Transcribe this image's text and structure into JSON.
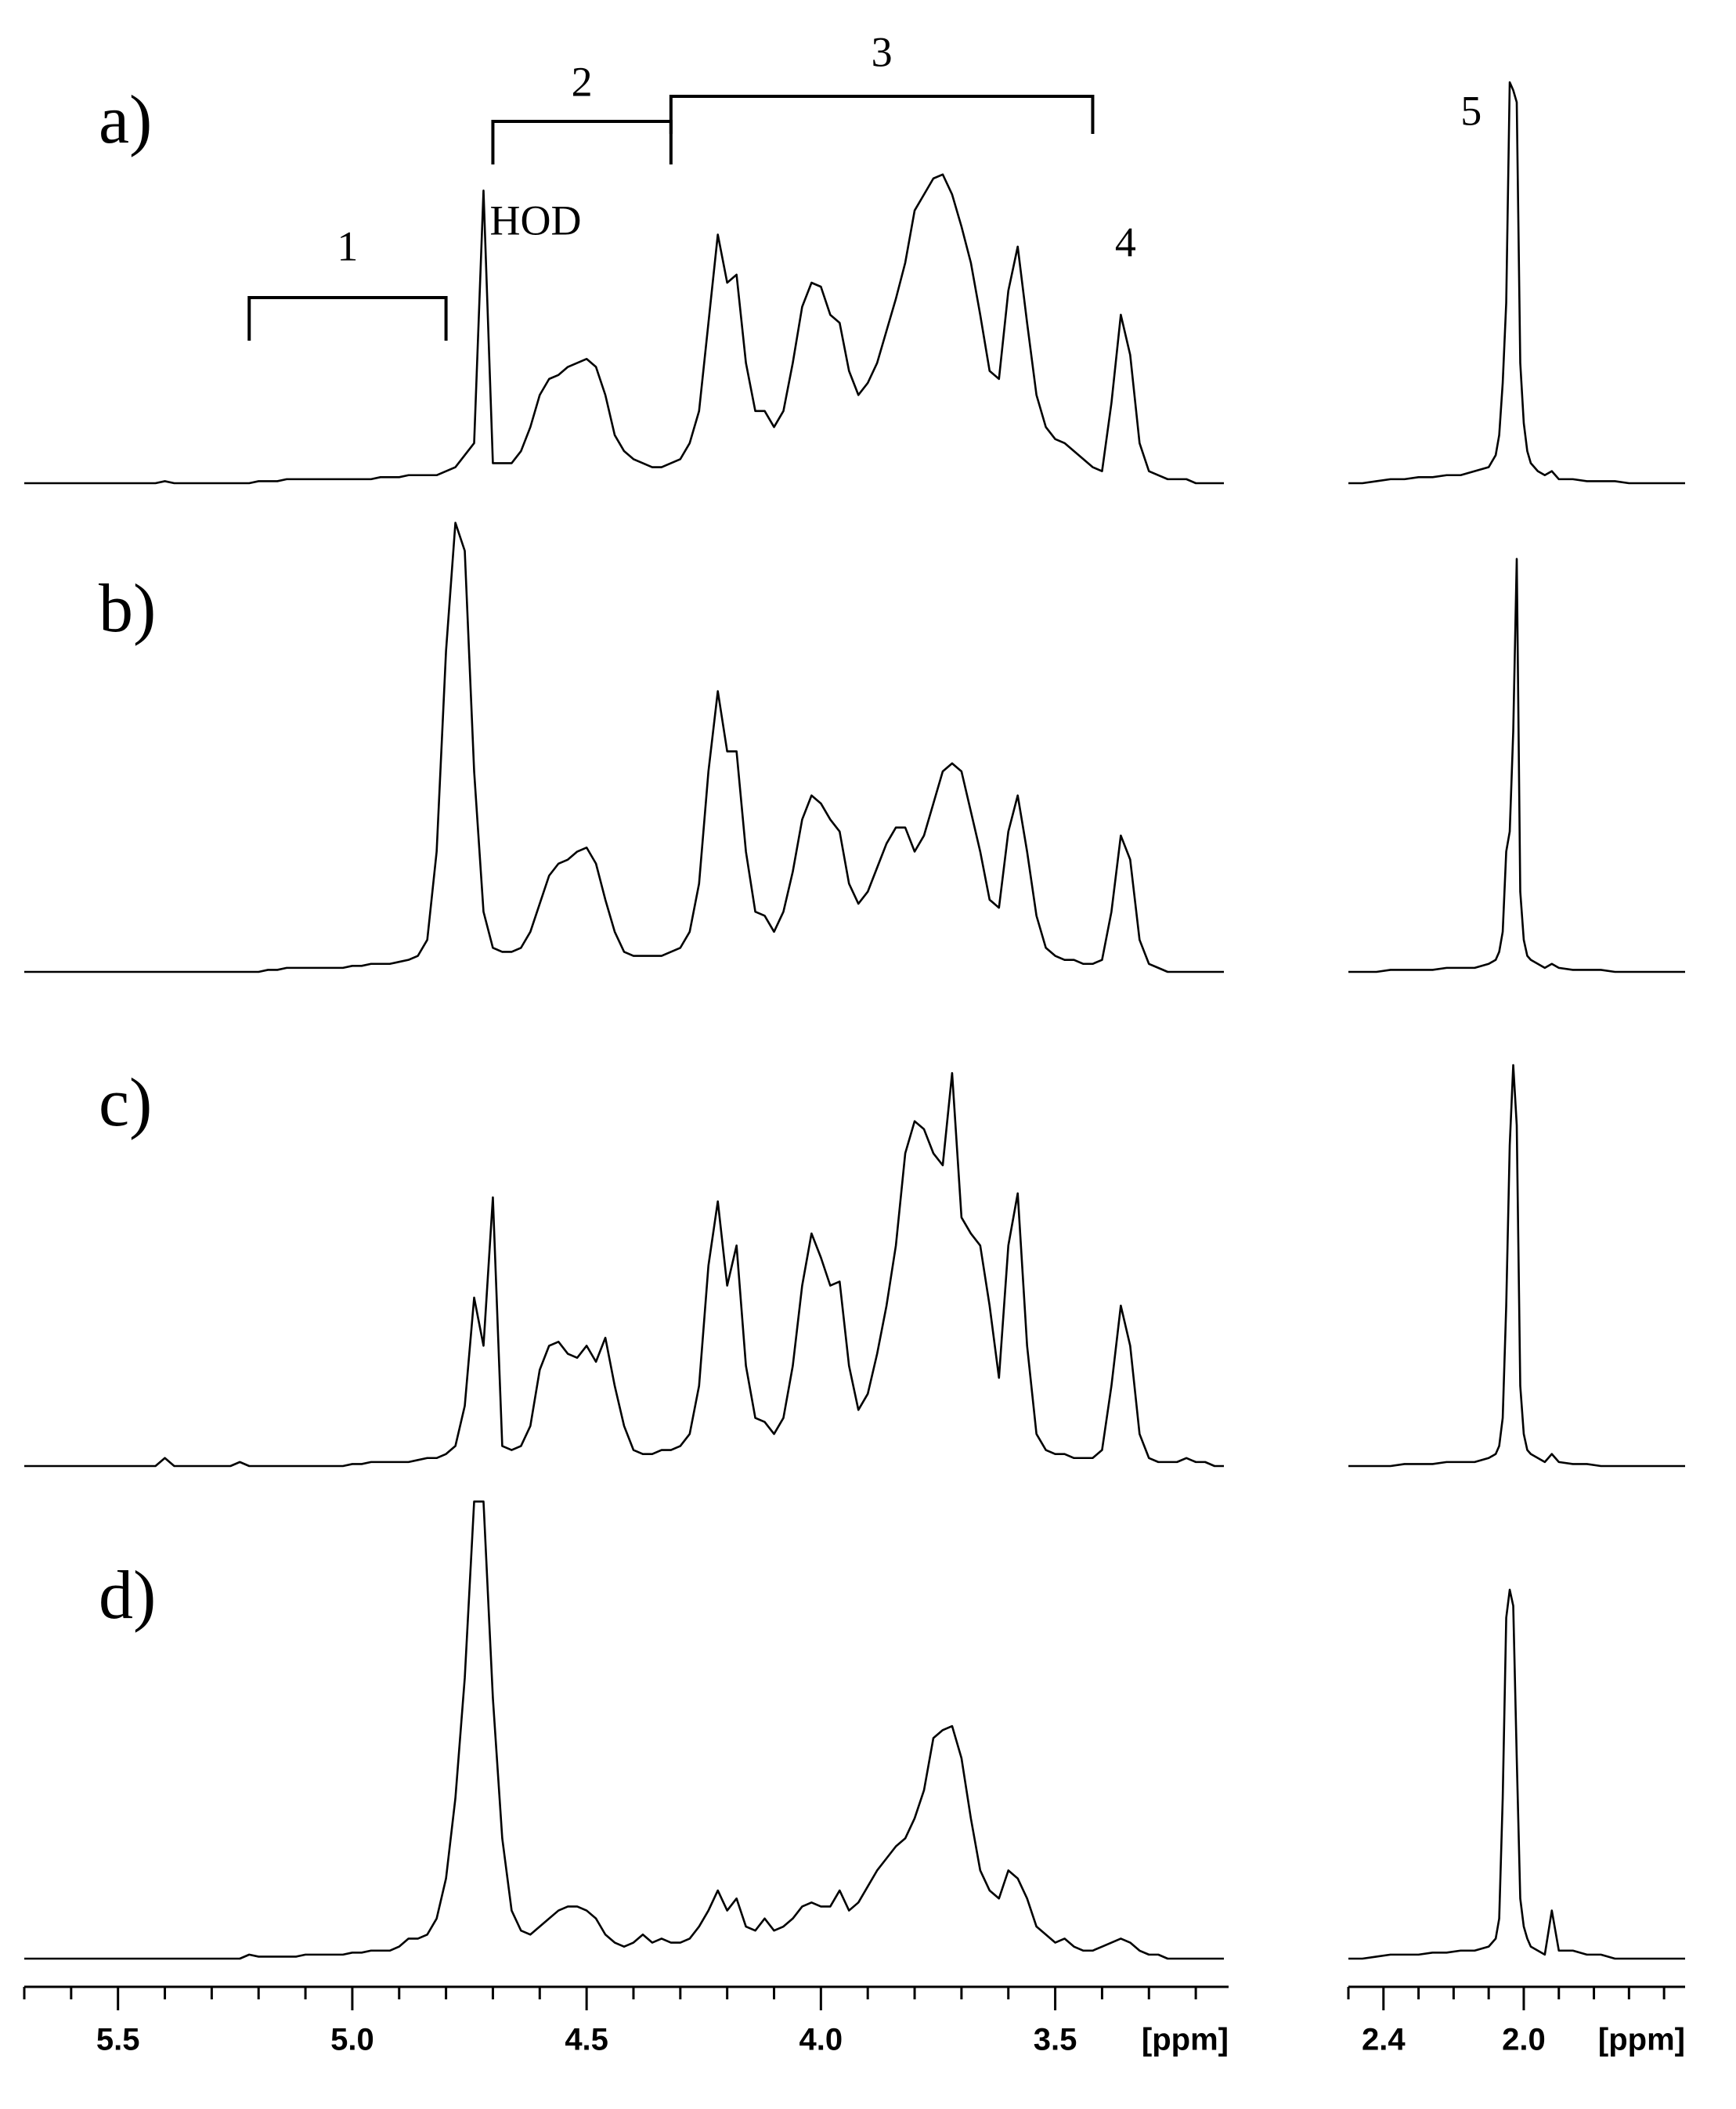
{
  "chart_data": [
    {
      "type": "line",
      "xlim": [
        5.7,
        3.13
      ],
      "ylim": [
        0,
        100
      ],
      "xticks": [
        5.5,
        {
          "value": 5,
          "label": "5.0"
        },
        4.5,
        {
          "value": 4,
          "label": "4.0"
        },
        3.5
      ],
      "xminorticks": [
        5.7,
        5.6,
        5.4,
        5.3,
        5.2,
        5.1,
        4.9,
        4.8,
        4.7,
        4.6,
        4.4,
        4.3,
        4.2,
        4.1,
        3.9,
        3.8,
        3.7,
        3.6,
        3.4,
        3.3,
        3.2
      ],
      "xlabel": "[ppm]",
      "x": [
        5.7,
        5.68,
        5.66,
        5.64,
        5.62,
        5.6,
        5.58,
        5.56,
        5.54,
        5.52,
        5.5,
        5.48,
        5.46,
        5.44,
        5.42,
        5.4,
        5.38,
        5.36,
        5.34,
        5.32,
        5.3,
        5.28,
        5.26,
        5.24,
        5.22,
        5.2,
        5.18,
        5.16,
        5.14,
        5.12,
        5.1,
        5.08,
        5.06,
        5.04,
        5.02,
        5,
        4.98,
        4.96,
        4.94,
        4.92,
        4.9,
        4.88,
        4.86,
        4.84,
        4.82,
        4.8,
        4.78,
        4.76,
        4.74,
        4.72,
        4.7,
        4.68,
        4.66,
        4.64,
        4.62,
        4.6,
        4.58,
        4.56,
        4.54,
        4.52,
        4.5,
        4.48,
        4.46,
        4.44,
        4.42,
        4.4,
        4.38,
        4.36,
        4.34,
        4.32,
        4.3,
        4.28,
        4.26,
        4.24,
        4.22,
        4.2,
        4.18,
        4.16,
        4.14,
        4.12,
        4.1,
        4.08,
        4.06,
        4.04,
        4.02,
        4,
        3.98,
        3.96,
        3.94,
        3.92,
        3.9,
        3.88,
        3.86,
        3.84,
        3.82,
        3.8,
        3.78,
        3.76,
        3.74,
        3.72,
        3.7,
        3.68,
        3.66,
        3.64,
        3.62,
        3.6,
        3.58,
        3.56,
        3.54,
        3.52,
        3.5,
        3.48,
        3.46,
        3.44,
        3.42,
        3.4,
        3.38,
        3.36,
        3.34,
        3.32,
        3.3,
        3.28,
        3.26,
        3.24,
        3.22,
        3.2,
        3.18,
        3.16,
        3.14
      ],
      "series": [
        {
          "name": "a)",
          "color": "#000000",
          "values": [
            0,
            0,
            0,
            0,
            0,
            0,
            0,
            0,
            0,
            0,
            0,
            0,
            0,
            0,
            0,
            0.5,
            0,
            0,
            0,
            0,
            0,
            0,
            0,
            0,
            0,
            0.5,
            0.5,
            0.5,
            1,
            1,
            1,
            1,
            1,
            1,
            1,
            1,
            1,
            1,
            1.5,
            1.5,
            1.5,
            2,
            2,
            2,
            2,
            3,
            4,
            7,
            10,
            73,
            5,
            5,
            5,
            8,
            14,
            22,
            26,
            27,
            29,
            30,
            31,
            29,
            22,
            12,
            8,
            6,
            5,
            4,
            4,
            5,
            6,
            10,
            18,
            40,
            62,
            50,
            52,
            30,
            18,
            18,
            14,
            18,
            30,
            44,
            50,
            49,
            42,
            40,
            28,
            22,
            25,
            30,
            38,
            46,
            55,
            68,
            72,
            76,
            77,
            72,
            64,
            55,
            42,
            28,
            26,
            48,
            59,
            40,
            22,
            14,
            11,
            10,
            8,
            6,
            4,
            3,
            20,
            42,
            32,
            10,
            3,
            2,
            1,
            1,
            1,
            0,
            0,
            0,
            0
          ]
        },
        {
          "name": "b)",
          "color": "#000000",
          "values": [
            0,
            0,
            0,
            0,
            0,
            0,
            0,
            0,
            0,
            0,
            0,
            0,
            0,
            0,
            0,
            0,
            0,
            0,
            0,
            0,
            0,
            0,
            0,
            0,
            0,
            0,
            0.5,
            0.5,
            1,
            1,
            1,
            1,
            1,
            1,
            1,
            1.5,
            1.5,
            2,
            2,
            2,
            2.5,
            3,
            4,
            8,
            30,
            80,
            112,
            105,
            50,
            15,
            6,
            5,
            5,
            6,
            10,
            17,
            24,
            27,
            28,
            30,
            31,
            27,
            18,
            10,
            5,
            4,
            4,
            4,
            4,
            5,
            6,
            10,
            22,
            50,
            70,
            55,
            55,
            30,
            15,
            14,
            10,
            15,
            25,
            38,
            44,
            42,
            38,
            35,
            22,
            17,
            20,
            26,
            32,
            36,
            36,
            30,
            34,
            42,
            50,
            52,
            50,
            40,
            30,
            18,
            16,
            35,
            44,
            30,
            14,
            6,
            4,
            3,
            3,
            2,
            2,
            3,
            15,
            34,
            28,
            8,
            2,
            1,
            0,
            0,
            0,
            0,
            0,
            0,
            0
          ]
        },
        {
          "name": "c)",
          "color": "#000000",
          "values": [
            0,
            0,
            0,
            0,
            0,
            0,
            0,
            0,
            0,
            0,
            0,
            0,
            0,
            0,
            0,
            2,
            0,
            0,
            0,
            0,
            0,
            0,
            0,
            1,
            0,
            0,
            0,
            0,
            0,
            0,
            0,
            0,
            0,
            0,
            0,
            0.5,
            0.5,
            1,
            1,
            1,
            1,
            1,
            1.5,
            2,
            2,
            3,
            5,
            15,
            42,
            30,
            67,
            5,
            4,
            5,
            10,
            24,
            30,
            31,
            28,
            27,
            30,
            26,
            32,
            20,
            10,
            4,
            3,
            3,
            4,
            4,
            5,
            8,
            20,
            50,
            66,
            45,
            55,
            25,
            12,
            11,
            8,
            12,
            25,
            45,
            58,
            52,
            45,
            46,
            25,
            14,
            18,
            28,
            40,
            55,
            78,
            86,
            84,
            78,
            75,
            98,
            62,
            58,
            55,
            40,
            22,
            55,
            68,
            30,
            8,
            4,
            3,
            3,
            2,
            2,
            2,
            4,
            20,
            40,
            30,
            8,
            2,
            1,
            1,
            1,
            2,
            1,
            1,
            0,
            0
          ]
        },
        {
          "name": "d)",
          "color": "#000000",
          "values": [
            0,
            0,
            0,
            0,
            0,
            0,
            0,
            0,
            0,
            0,
            0,
            0,
            0,
            0,
            0,
            0,
            0,
            0,
            0,
            0,
            0,
            0,
            0,
            0,
            1,
            0.5,
            0.5,
            0.5,
            0.5,
            0.5,
            1,
            1,
            1,
            1,
            1,
            1.5,
            1.5,
            2,
            2,
            2,
            3,
            5,
            5,
            6,
            10,
            20,
            40,
            70,
            114,
            114,
            65,
            30,
            12,
            7,
            6,
            8,
            10,
            12,
            13,
            13,
            12,
            10,
            6,
            4,
            3,
            4,
            6,
            4,
            5,
            4,
            4,
            5,
            8,
            12,
            17,
            12,
            15,
            8,
            7,
            10,
            7,
            8,
            10,
            13,
            14,
            13,
            13,
            17,
            12,
            14,
            18,
            22,
            25,
            28,
            30,
            35,
            42,
            55,
            57,
            58,
            50,
            35,
            22,
            17,
            15,
            22,
            20,
            15,
            8,
            6,
            4,
            5,
            3,
            2,
            2,
            3,
            4,
            5,
            4,
            2,
            1,
            1,
            0,
            0,
            0,
            0,
            0,
            0,
            0
          ]
        }
      ],
      "annotations": [
        {
          "text": "1",
          "x": [
            5.22,
            4.8
          ]
        },
        {
          "text": "2",
          "x": [
            4.7,
            4.32
          ]
        },
        {
          "text": "3",
          "x": [
            4.32,
            3.42
          ]
        },
        {
          "text": "HOD",
          "x": 4.72
        },
        {
          "text": "4",
          "x": 3.35
        }
      ]
    },
    {
      "type": "line",
      "xlim": [
        2.5,
        1.54
      ],
      "ylim": [
        0,
        100
      ],
      "xticks": [
        2.4,
        {
          "value": 2,
          "label": "2.0"
        }
      ],
      "xminorticks": [
        2.5,
        2.3,
        2.2,
        2.1,
        1.9,
        1.8,
        1.7,
        1.6
      ],
      "xlabel": "[ppm]",
      "x": [
        2.5,
        2.46,
        2.42,
        2.38,
        2.34,
        2.3,
        2.26,
        2.22,
        2.18,
        2.14,
        2.1,
        2.08,
        2.07,
        2.06,
        2.05,
        2.04,
        2.03,
        2.02,
        2.01,
        2,
        1.99,
        1.98,
        1.96,
        1.94,
        1.92,
        1.9,
        1.86,
        1.82,
        1.78,
        1.74,
        1.7,
        1.66,
        1.62,
        1.58,
        1.54
      ],
      "series": [
        {
          "color": "#000000",
          "values": [
            0,
            0,
            0.5,
            1,
            1,
            1.5,
            1.5,
            2,
            2,
            3,
            4,
            7,
            12,
            25,
            45,
            100,
            98,
            95,
            30,
            15,
            8,
            5,
            3,
            2,
            3,
            1,
            1,
            0.5,
            0.5,
            0.5,
            0,
            0,
            0,
            0,
            0
          ]
        },
        {
          "color": "#000000",
          "values": [
            0,
            0,
            0,
            0.5,
            0.5,
            0.5,
            0.5,
            1,
            1,
            1,
            2,
            3,
            5,
            10,
            30,
            35,
            60,
            103,
            20,
            8,
            4,
            3,
            2,
            1,
            2,
            1,
            0.5,
            0.5,
            0.5,
            0,
            0,
            0,
            0,
            0,
            0
          ]
        },
        {
          "color": "#000000",
          "values": [
            0,
            0,
            0,
            0,
            0.5,
            0.5,
            0.5,
            1,
            1,
            1,
            2,
            3,
            5,
            12,
            40,
            80,
            100,
            85,
            20,
            8,
            4,
            3,
            2,
            1,
            3,
            1,
            0.5,
            0.5,
            0,
            0,
            0,
            0,
            0,
            0,
            0
          ]
        },
        {
          "color": "#000000",
          "values": [
            0,
            0,
            0.5,
            1,
            1,
            1,
            1.5,
            1.5,
            2,
            2,
            3,
            5,
            10,
            40,
            85,
            92,
            88,
            50,
            15,
            8,
            5,
            3,
            2,
            1,
            12,
            2,
            2,
            1,
            1,
            0,
            0,
            0,
            0,
            0,
            0
          ]
        }
      ],
      "annotations": [
        {
          "text": "5",
          "x": 2.15
        }
      ]
    }
  ]
}
